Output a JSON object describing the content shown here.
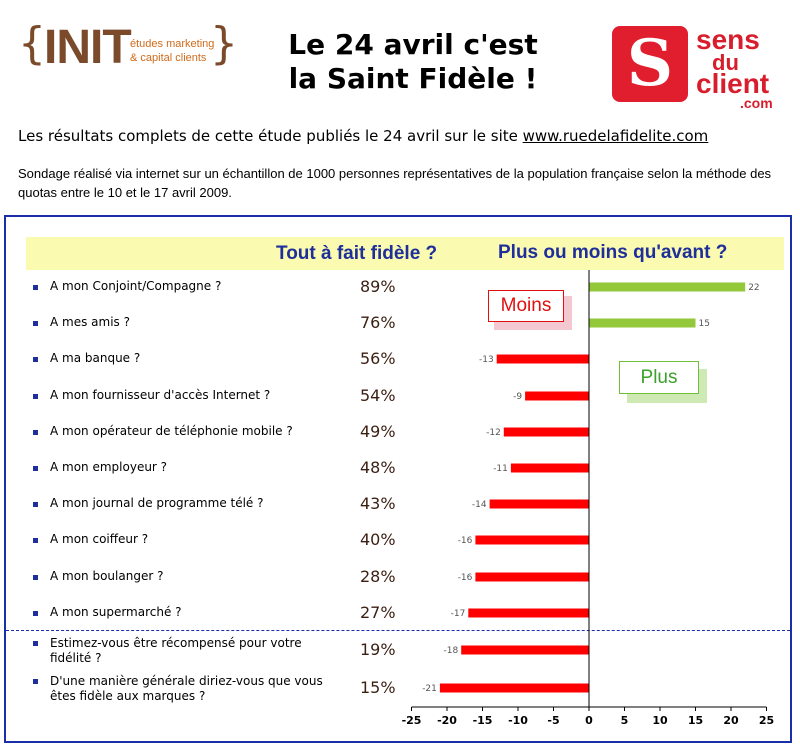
{
  "header": {
    "init_logo": {
      "word": "INIT",
      "tag_line1": "études marketing",
      "tag_line2": "& capital clients"
    },
    "title_line1": "Le 24 avril c'est",
    "title_line2": "la Saint Fidèle !",
    "sdc_logo": {
      "line1": "sens",
      "line2": "du",
      "line3": "client",
      "line4": ".com",
      "letter": "S"
    },
    "results_text": "Les résultats complets de cette étude publiés le 24 avril sur le site ",
    "results_link": "www.ruedelafidelite.com",
    "survey_text": "Sondage réalisé via internet sur un échantillon de 1000 personnes représentatives de la population française selon la méthode des quotas entre le 10 et le 17 avril 2009."
  },
  "colors": {
    "negative": "#ff0000",
    "positive": "#92c83a",
    "title_blue": "#1e2e9a",
    "frame": "#1a2ea8"
  },
  "callouts": {
    "moins": "Moins",
    "plus": "Plus"
  },
  "chart_data": {
    "type": "bar",
    "orientation": "horizontal",
    "col1_title": "Tout à fait fidèle ?",
    "col2_title": "Plus ou moins qu'avant ?",
    "categories": [
      "A mon Conjoint/Compagne ?",
      "A mes amis ?",
      "A ma banque ?",
      "A mon fournisseur d'accès Internet ?",
      "A mon opérateur de téléphonie mobile ?",
      "A mon employeur ?",
      "A mon journal de programme télé ?",
      "A mon coiffeur ?",
      "A mon boulanger ?",
      "A mon supermarché ?",
      "Estimez-vous être récompensé pour votre fidélité ?",
      "D'une manière générale diriez-vous que vous êtes fidèle aux marques ?"
    ],
    "percentages": [
      "89%",
      "76%",
      "56%",
      "54%",
      "49%",
      "48%",
      "43%",
      "40%",
      "28%",
      "27%",
      "19%",
      "15%"
    ],
    "values": [
      22,
      15,
      -13,
      -9,
      -12,
      -11,
      -14,
      -16,
      -16,
      -17,
      -18,
      -21
    ],
    "xlim": [
      -25,
      25
    ],
    "xticks": [
      "-25",
      "-20",
      "-15",
      "-10",
      "-5",
      "0",
      "5",
      "10",
      "15",
      "20",
      "25"
    ],
    "grid": false
  }
}
